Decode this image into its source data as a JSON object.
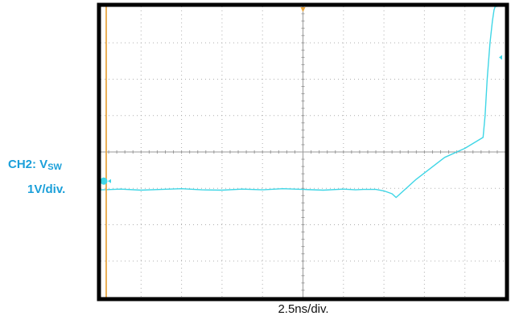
{
  "channel": {
    "name_prefix": "CH2: V",
    "name_subscript": "SW",
    "scale": "1V/div.",
    "color": "#3fd6e6",
    "label_color": "#1a9fd9"
  },
  "timebase": {
    "label": "2.5ns/div."
  },
  "colors": {
    "frame": "#000000",
    "background": "#ffffff",
    "grid": "#9a9a9a",
    "trigger_marker": "#e8a33a"
  },
  "chart_data": {
    "type": "line",
    "title": "",
    "xlabel": "2.5ns/div.",
    "ylabel": "CH2: VSW 1V/div.",
    "x_divisions": 10,
    "y_divisions": 8,
    "xlim": [
      0,
      10
    ],
    "ylim": [
      -4,
      4
    ],
    "grid": true,
    "series": [
      {
        "name": "CH2: VSW",
        "color": "#3fd6e6",
        "x": [
          0,
          0.5,
          1.0,
          1.5,
          2.0,
          2.5,
          3.0,
          3.5,
          4.0,
          4.5,
          5.0,
          5.5,
          6.0,
          6.3,
          6.5,
          6.8,
          7.0,
          7.2,
          7.3,
          7.8,
          8.5,
          9.0,
          9.45,
          9.5,
          9.55,
          9.62,
          9.68,
          9.72,
          9.75,
          9.8
        ],
        "y": [
          -1.04,
          -1.02,
          -1.05,
          -1.03,
          -1.01,
          -1.04,
          -1.05,
          -1.02,
          -1.04,
          -1.01,
          -1.03,
          -1.05,
          -1.02,
          -1.04,
          -1.03,
          -1.03,
          -1.07,
          -1.15,
          -1.25,
          -0.75,
          -0.15,
          0.1,
          0.4,
          1.0,
          2.0,
          3.0,
          3.6,
          3.9,
          4.0,
          4.0
        ]
      }
    ],
    "markers": {
      "ground_level_div": -1.0,
      "trigger_level_div": 2.6,
      "trigger_position_div": 5.0
    }
  }
}
